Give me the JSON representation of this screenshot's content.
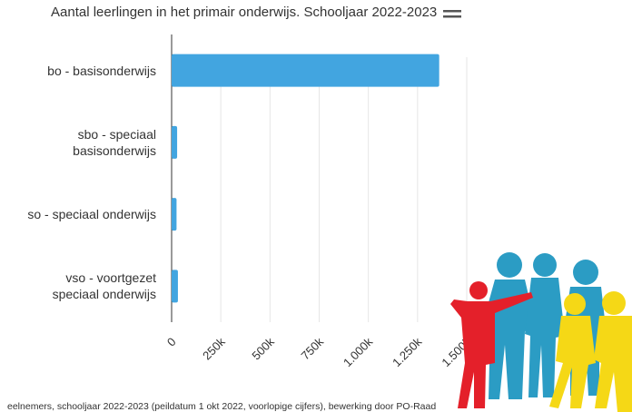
{
  "chart_data": {
    "type": "bar",
    "orientation": "horizontal",
    "title": "Aantal leerlingen in het primair onderwijs. Schooljaar 2022-2023",
    "categories": [
      "bo - basisonderwijs",
      "sbo - speciaal basisonderwijs",
      "so - speciaal onderwijs",
      "vso - voortgezet speciaal onderwijs"
    ],
    "values": [
      1360000,
      28000,
      25000,
      32000
    ],
    "color": "#42a5e0",
    "xlim": [
      0,
      1500000
    ],
    "xticks": [
      0,
      {
        "value": 250000,
        "label": "250k"
      },
      {
        "value": 500000,
        "label": "500k"
      },
      {
        "value": 750000,
        "label": "750k"
      },
      {
        "value": 1000000,
        "label": "1.000k"
      },
      {
        "value": 1250000,
        "label": "1.250k"
      },
      {
        "value": 1500000,
        "label": "1.500k"
      }
    ],
    "grid": true,
    "source": "eelnemers, schooljaar 2022-2023 (peildatum 1 okt 2022, voorlopige cijfers), bewerking door PO-Raad"
  }
}
